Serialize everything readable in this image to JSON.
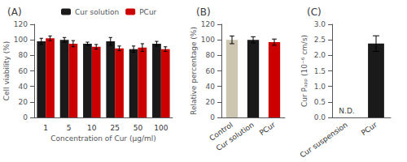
{
  "chart_data": [
    {
      "type": "bar",
      "title": "(A)",
      "xlabel": "Concentration of Cur (μg/ml)",
      "ylabel": "Cell viability (%)",
      "categories": [
        "1",
        "5",
        "10",
        "25",
        "50",
        "100"
      ],
      "series": [
        {
          "name": "Cur solution",
          "color": "#1a1a1a",
          "values": [
            98,
            100,
            95,
            98,
            88,
            95
          ],
          "errors": [
            4,
            3,
            2,
            5,
            4,
            3
          ]
        },
        {
          "name": "PCur",
          "color": "#cc0000",
          "values": [
            102,
            95,
            91,
            89,
            90,
            88
          ],
          "errors": [
            3,
            4,
            3,
            3,
            5,
            3
          ]
        }
      ],
      "ylim": [
        0,
        120
      ],
      "yticks": [
        0,
        20,
        40,
        60,
        80,
        100,
        120
      ],
      "legend": "upper left",
      "grid": false
    },
    {
      "type": "bar",
      "title": "(B)",
      "ylabel": "Relative percentage (%)",
      "categories": [
        "Control",
        "Cur solution",
        "PCur"
      ],
      "values": [
        100,
        100,
        97
      ],
      "errors": [
        5,
        4,
        4
      ],
      "colors": [
        "#ccc5b0",
        "#1a1a1a",
        "#cc0000"
      ],
      "ylim": [
        0,
        120
      ],
      "yticks": [
        0,
        20,
        40,
        60,
        80,
        100,
        120
      ],
      "grid": false
    },
    {
      "type": "bar",
      "title": "(C)",
      "ylabel": "Cur Pₐₚₚ (10⁻⁶ cm/s)",
      "categories": [
        "Cur suspension",
        "PCur"
      ],
      "values": [
        0,
        2.38
      ],
      "errors": [
        0,
        0.25
      ],
      "color": "#1a1a1a",
      "annotations": [
        {
          "text": "N.D.",
          "x": "Cur suspension",
          "y": 0.06
        }
      ],
      "ylim": [
        0,
        3.0
      ],
      "yticks": [
        {
          "value": 0.0,
          "label": "0.0"
        },
        0.5,
        {
          "value": 1.0,
          "label": "1.0"
        },
        1.5,
        {
          "value": 2.0,
          "label": "2.0"
        },
        2.5,
        {
          "value": 3.0,
          "label": "3.0"
        }
      ],
      "grid": false
    }
  ]
}
